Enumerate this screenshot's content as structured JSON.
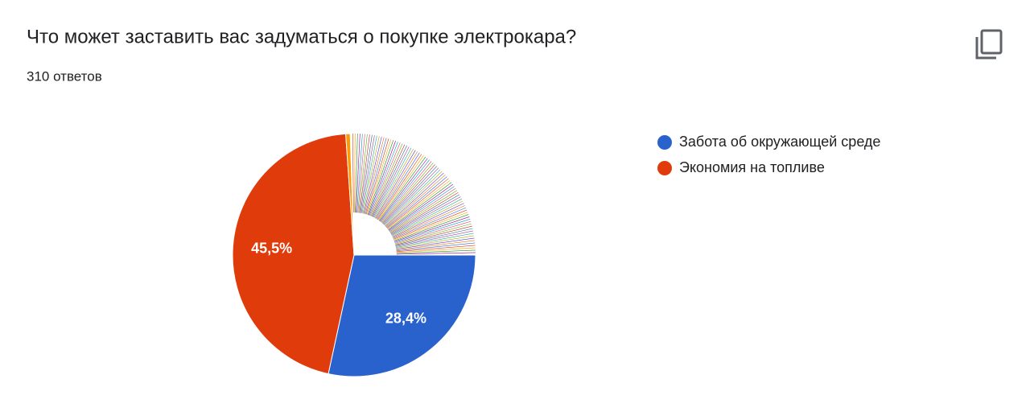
{
  "chart_data": {
    "type": "pie",
    "title": "Что может заставить вас задуматься о покупке электрокара?",
    "subtitle": "310 ответов",
    "categories": [
      "Забота об окружающей среде",
      "Экономия на топливе",
      null,
      null
    ],
    "values": [
      28.4,
      45.5,
      0.6,
      25.5
    ],
    "value_labels": [
      "28,4%",
      "45,5%",
      null,
      null
    ],
    "colors": [
      "#2a62cd",
      "#e03b0b",
      "#ff9900",
      "#ffffff"
    ]
  }
}
